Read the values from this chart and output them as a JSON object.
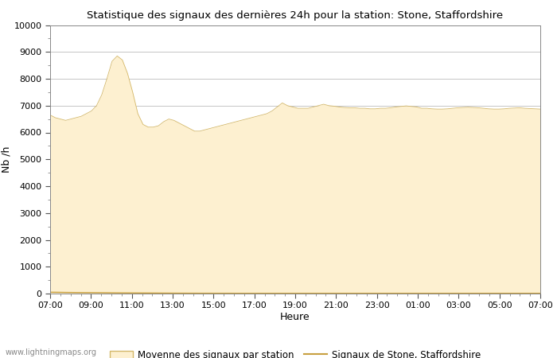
{
  "title": "Statistique des signaux des dernières 24h pour la station: Stone, Staffordshire",
  "xlabel": "Heure",
  "ylabel": "Nb /h",
  "watermark": "www.lightningmaps.org",
  "ylim": [
    0,
    10000
  ],
  "yticks": [
    0,
    1000,
    2000,
    3000,
    4000,
    5000,
    6000,
    7000,
    8000,
    9000,
    10000
  ],
  "xtick_labels": [
    "07:00",
    "09:00",
    "11:00",
    "13:00",
    "15:00",
    "17:00",
    "19:00",
    "21:00",
    "23:00",
    "01:00",
    "03:00",
    "05:00",
    "07:00"
  ],
  "fill_color": "#FDF0D0",
  "fill_edge_color": "#D4B86A",
  "line_color": "#C8A040",
  "background_color": "#ffffff",
  "grid_color": "#bbbbbb",
  "legend_fill_label": "Moyenne des signaux par station",
  "legend_line_label": "Signaux de Stone, Staffordshire",
  "area_values": [
    6650,
    6550,
    6500,
    6450,
    6500,
    6550,
    6600,
    6700,
    6800,
    7000,
    7400,
    8000,
    8650,
    8850,
    8700,
    8200,
    7500,
    6700,
    6300,
    6200,
    6200,
    6250,
    6400,
    6500,
    6450,
    6350,
    6250,
    6150,
    6050,
    6050,
    6100,
    6150,
    6200,
    6250,
    6300,
    6350,
    6400,
    6450,
    6500,
    6550,
    6600,
    6650,
    6700,
    6800,
    6950,
    7100,
    7000,
    6950,
    6900,
    6900,
    6900,
    6950,
    7000,
    7050,
    7000,
    6980,
    6950,
    6930,
    6920,
    6920,
    6900,
    6900,
    6880,
    6880,
    6900,
    6900,
    6920,
    6950,
    6970,
    6990,
    6970,
    6950,
    6900,
    6900,
    6880,
    6870,
    6870,
    6880,
    6900,
    6920,
    6930,
    6940,
    6930,
    6920,
    6900,
    6880,
    6870,
    6870,
    6880,
    6900,
    6910,
    6920,
    6900,
    6890,
    6880,
    6870
  ],
  "line_values": [
    50,
    48,
    45,
    42,
    40,
    38,
    36,
    35,
    34,
    33,
    32,
    30,
    28,
    26,
    25,
    24,
    23,
    22,
    21,
    20,
    19,
    18,
    17,
    16,
    15,
    14,
    14,
    13,
    13,
    12,
    12,
    12,
    11,
    11,
    11,
    11,
    10,
    10,
    10,
    10,
    10,
    10,
    10,
    10,
    10,
    10,
    10,
    10,
    10,
    10,
    10,
    10,
    10,
    10,
    10,
    10,
    10,
    10,
    10,
    10,
    10,
    10,
    10,
    10,
    10,
    10,
    10,
    10,
    10,
    10,
    10,
    10,
    10,
    10,
    10,
    10,
    10,
    10,
    10,
    10,
    10,
    10,
    10,
    10,
    10,
    10,
    10,
    10,
    10,
    10,
    10,
    10,
    10,
    10,
    10,
    10
  ],
  "n_points": 96,
  "n_ticks_major": 13,
  "minor_ticks_per_major": 4
}
